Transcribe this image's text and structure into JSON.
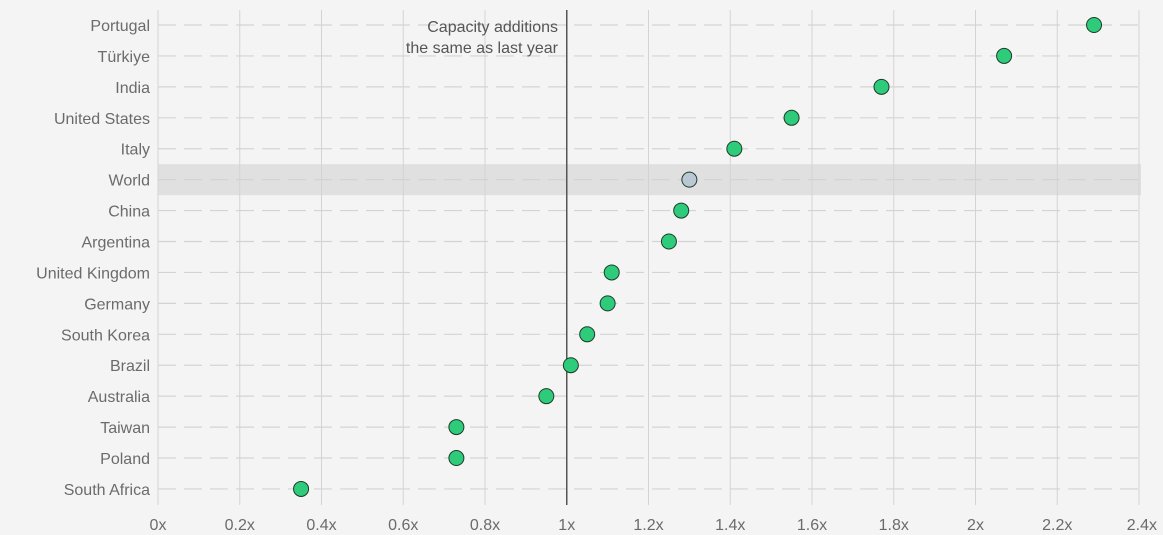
{
  "chart_data": {
    "type": "scatter",
    "orientation": "horizontal-dot",
    "annotation": [
      "Capacity additions",
      "the same as last year"
    ],
    "reference_x": 1,
    "xlim": [
      0,
      2.4
    ],
    "x_ticks": [
      {
        "value": 0,
        "label": "0x"
      },
      {
        "value": 0.2,
        "label": "0.2x"
      },
      {
        "value": 0.4,
        "label": "0.4x"
      },
      {
        "value": 0.6,
        "label": "0.6x"
      },
      {
        "value": 0.8,
        "label": "0.8x"
      },
      {
        "value": 1,
        "label": "1x"
      },
      {
        "value": 1.2,
        "label": "1.2x"
      },
      {
        "value": 1.4,
        "label": "1.4x"
      },
      {
        "value": 1.6,
        "label": "1.6x"
      },
      {
        "value": 1.8,
        "label": "1.8x"
      },
      {
        "value": 2,
        "label": "2x"
      },
      {
        "value": 2.2,
        "label": "2.2x"
      },
      {
        "value": 2.4,
        "label": "2.4x"
      }
    ],
    "categories": [
      "Portugal",
      "Türkiye",
      "India",
      "United States",
      "Italy",
      "World",
      "China",
      "Argentina",
      "United Kingdom",
      "Germany",
      "South Korea",
      "Brazil",
      "Australia",
      "Taiwan",
      "Poland",
      "South Africa"
    ],
    "values": [
      2.29,
      2.07,
      1.77,
      1.55,
      1.41,
      1.3,
      1.28,
      1.25,
      1.11,
      1.1,
      1.05,
      1.01,
      0.95,
      0.73,
      0.73,
      0.35
    ],
    "highlight": "World",
    "colors": {
      "point": "#2ecc7a",
      "highlight_point": "#b9c8d3",
      "point_stroke": "#1d3b2a",
      "highlight_band": "#e0e0e0",
      "grid": "#d3d3d3",
      "reference_line": "#555555"
    },
    "grid": true
  }
}
